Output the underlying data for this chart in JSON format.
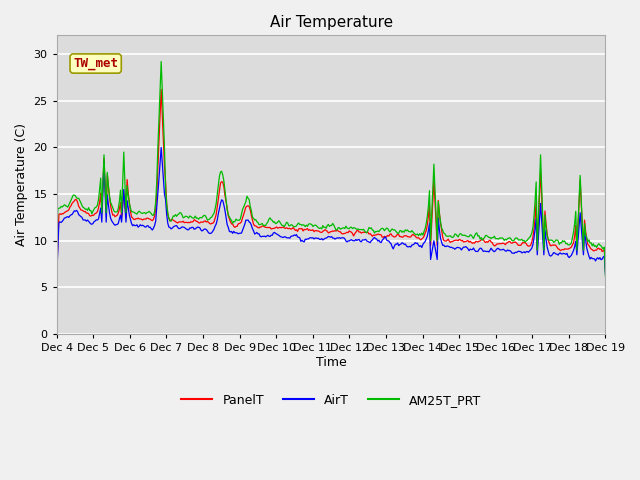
{
  "title": "Air Temperature",
  "ylabel": "Air Temperature (C)",
  "xlabel": "Time",
  "annotation": "TW_met",
  "ylim": [
    0,
    32
  ],
  "yticks": [
    0,
    5,
    10,
    15,
    20,
    25,
    30
  ],
  "legend_labels": [
    "PanelT",
    "AirT",
    "AM25T_PRT"
  ],
  "line_colors": [
    "#ff0000",
    "#0000ff",
    "#00bb00"
  ],
  "facecolor": "#dcdcdc",
  "plot_bg": "#dcdcdc",
  "outer_bg": "#f0f0f0",
  "title_fontsize": 11,
  "label_fontsize": 9,
  "tick_fontsize": 8,
  "x_tick_labels": [
    "Dec 4",
    "Dec 5",
    "Dec 6",
    "Dec 7",
    "Dec 8",
    "Dec 9",
    "Dec 10",
    "Dec 11",
    "Dec 12",
    "Dec 13",
    "Dec 14",
    "Dec 15",
    "Dec 16",
    "Dec 17",
    "Dec 18",
    "Dec 19"
  ],
  "n_points": 500
}
